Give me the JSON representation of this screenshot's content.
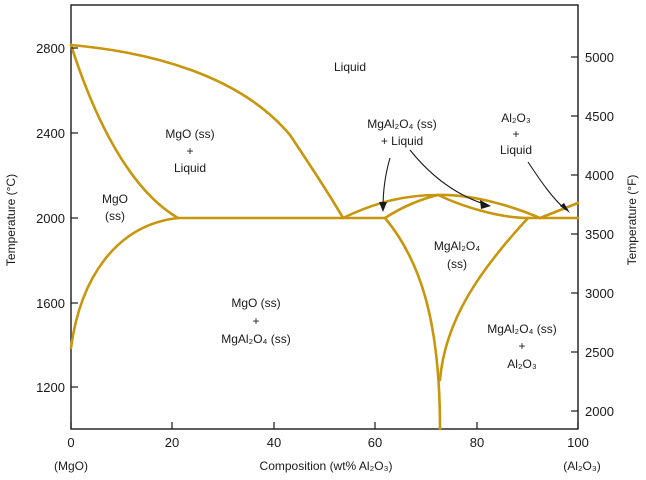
{
  "colors": {
    "phase_boundary": "#c8960c",
    "frame": "#1a1a1a",
    "background": "#ffffff"
  },
  "axes": {
    "left_title": "Temperature (°C)",
    "right_title": "Temperature (°F)",
    "bottom_title": "Composition (wt% Al₂O₃)",
    "bottom_left_end": "(MgO)",
    "bottom_right_end": "(Al₂O₃)",
    "left_ticks": [
      "1200",
      "1600",
      "2000",
      "2400",
      "2800"
    ],
    "right_ticks": [
      "2000",
      "2500",
      "3000",
      "3500",
      "4000",
      "4500",
      "5000"
    ],
    "bottom_ticks": [
      "0",
      "20",
      "40",
      "60",
      "80",
      "100"
    ]
  },
  "regions": {
    "liquid": "Liquid",
    "mgo_ss_liquid": [
      "MgO (ss)",
      "+",
      "Liquid"
    ],
    "mgo_ss": [
      "MgO",
      "(ss)"
    ],
    "mgo_ss_spinel": [
      "MgO (ss)",
      "+",
      "MgAl₂O₄ (ss)"
    ],
    "spinel_liquid": [
      "MgAl₂O₄ (ss)",
      "+ Liquid"
    ],
    "alumina_liquid": [
      "Al₂O₃",
      "+",
      "Liquid"
    ],
    "spinel_ss": [
      "MgAl₂O₄",
      "(ss)"
    ],
    "spinel_alumina": [
      "MgAl₂O₄ (ss)",
      "+",
      "Al₂O₃"
    ]
  },
  "chart_data": {
    "type": "phase-diagram",
    "system": "MgO–Al₂O₃",
    "x_range_wt_pct_Al2O3": [
      0,
      100
    ],
    "y_range_C": [
      1000,
      3000
    ],
    "right_axis_unit": "°F",
    "key_points": {
      "mgo_melting_C": 2820,
      "eutectic_1": {
        "wt_pct": 53,
        "T_C": 2010
      },
      "spinel_congruent_max": {
        "wt_pct": 72.5,
        "T_C": 2110
      },
      "eutectic_2": {
        "wt_pct": 93,
        "T_C": 2010
      },
      "mgo_ss_max_solubility_wt_pct": 21
    }
  }
}
